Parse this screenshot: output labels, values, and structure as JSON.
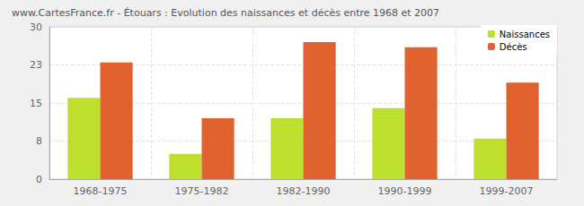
{
  "chart_data": {
    "type": "bar",
    "title": "www.CartesFrance.fr - Étouars : Evolution des naissances et décès entre 1968 et 2007",
    "categories": [
      "1968-1975",
      "1975-1982",
      "1982-1990",
      "1990-1999",
      "1999-2007"
    ],
    "series": [
      {
        "name": "Naissances",
        "color": "#bde02e",
        "values": [
          16,
          5,
          12,
          14,
          8
        ]
      },
      {
        "name": "Décès",
        "color": "#e0622e",
        "values": [
          23,
          12,
          27,
          26,
          19
        ]
      }
    ],
    "ylim": [
      0,
      30
    ],
    "yticks": [
      0,
      {
        "value": 7.5,
        "label": "8"
      },
      15,
      {
        "value": 22.5,
        "label": "23"
      },
      30
    ],
    "grid": true,
    "legend": "upper right"
  }
}
